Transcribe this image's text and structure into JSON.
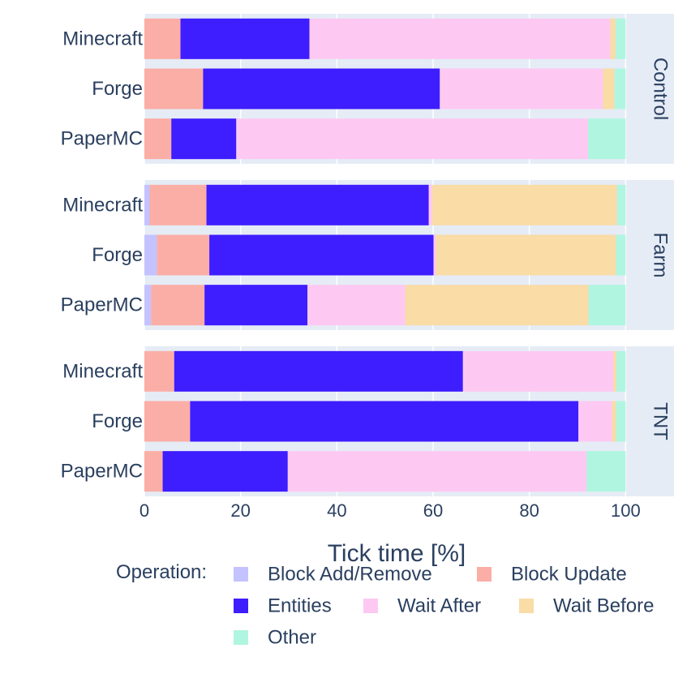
{
  "chart_data": {
    "type": "bar",
    "orientation": "horizontal",
    "stacked": true,
    "xlabel": "Tick time [%]",
    "xlim": [
      0,
      105
    ],
    "xticks": [
      0,
      20,
      40,
      60,
      80,
      100
    ],
    "categories": [
      "Minecraft",
      "Forge",
      "PaperMC"
    ],
    "facets": [
      "Control",
      "Farm",
      "TNT"
    ],
    "legend": {
      "title": "Operation:",
      "placement": "bottom"
    },
    "series": [
      {
        "name": "Block Add/Remove",
        "color": "#c4c2ff"
      },
      {
        "name": "Block Update",
        "color": "#fbaea6"
      },
      {
        "name": "Entities",
        "color": "#3e1dff"
      },
      {
        "name": "Wait After",
        "color": "#fdc9f2"
      },
      {
        "name": "Wait Before",
        "color": "#f9dca6"
      },
      {
        "name": "Other",
        "color": "#b0f5e0"
      }
    ],
    "panels": [
      {
        "facet": "Control",
        "bars": [
          {
            "category": "Minecraft",
            "values": [
              0,
              7.5,
              26.8,
              62.5,
              1.1,
              2.1
            ]
          },
          {
            "category": "Forge",
            "values": [
              0,
              12.2,
              49.2,
              33.9,
              2.4,
              2.3
            ]
          },
          {
            "category": "PaperMC",
            "values": [
              0,
              5.6,
              13.5,
              73.1,
              0,
              7.8
            ]
          }
        ]
      },
      {
        "facet": "Farm",
        "bars": [
          {
            "category": "Minecraft",
            "values": [
              1.1,
              11.8,
              46.2,
              0.7,
              38.4,
              1.8
            ]
          },
          {
            "category": "Forge",
            "values": [
              2.6,
              10.9,
              46.6,
              0.5,
              37.4,
              2.0
            ]
          },
          {
            "category": "PaperMC",
            "values": [
              1.4,
              11.1,
              21.4,
              20.3,
              38.1,
              7.7
            ]
          }
        ]
      },
      {
        "facet": "TNT",
        "bars": [
          {
            "category": "Minecraft",
            "values": [
              0,
              6.2,
              60.0,
              31.3,
              0.6,
              1.9
            ]
          },
          {
            "category": "Forge",
            "values": [
              0,
              9.5,
              80.7,
              7.0,
              0.8,
              2.0
            ]
          },
          {
            "category": "PaperMC",
            "values": [
              0,
              3.8,
              26.0,
              62.1,
              0,
              8.1
            ]
          }
        ]
      }
    ]
  }
}
